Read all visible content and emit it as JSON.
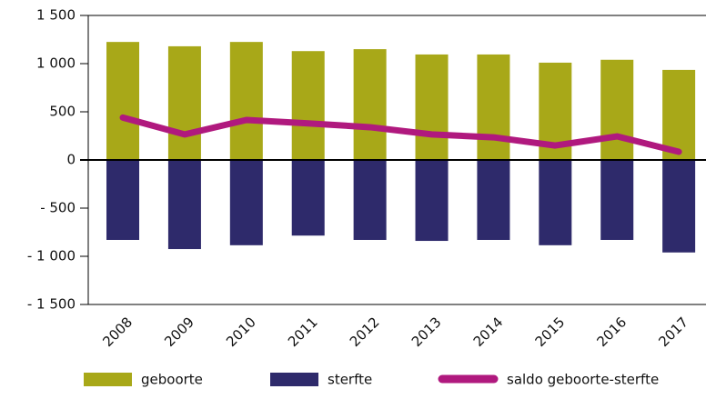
{
  "chart_data": {
    "type": "bar-line",
    "categories": [
      "2008",
      "2009",
      "2010",
      "2011",
      "2012",
      "2013",
      "2014",
      "2015",
      "2016",
      "2017"
    ],
    "series": [
      {
        "name": "geboorte",
        "type": "bar",
        "color": "#a8a818",
        "values": [
          1225,
          1180,
          1225,
          1130,
          1150,
          1095,
          1095,
          1010,
          1040,
          935
        ]
      },
      {
        "name": "sterfte",
        "type": "bar",
        "color": "#2e2a6b",
        "values": [
          -830,
          -925,
          -885,
          -785,
          -830,
          -840,
          -830,
          -885,
          -830,
          -960
        ]
      },
      {
        "name": "saldo geboorte-sterfte",
        "type": "line",
        "color": "#b0197e",
        "values": [
          440,
          265,
          415,
          380,
          340,
          265,
          235,
          150,
          245,
          85
        ]
      }
    ],
    "ylim": [
      -1500,
      1500
    ],
    "yticks": [
      {
        "value": -1500,
        "label": "- 1 500"
      },
      {
        "value": -1000,
        "label": "- 1 000"
      },
      {
        "value": -500,
        "label": "- 500"
      },
      0,
      500,
      {
        "value": 1000,
        "label": "1 000"
      },
      {
        "value": 1500,
        "label": "1 500"
      }
    ]
  }
}
